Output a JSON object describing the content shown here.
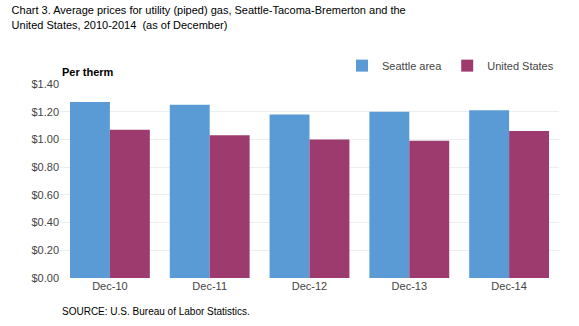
{
  "chart_data": {
    "type": "bar",
    "title": "Chart 3. Average prices for utility (piped) gas, Seattle-Tacoma-Bremerton and the\nUnited States, 2010-2014  (as of December)",
    "ylabel": "Per therm",
    "annotations": [
      "SOURCE: U.S. Bureau of Labor Statistics."
    ],
    "categories": [
      "Dec-10",
      "Dec-11",
      "Dec-12",
      "Dec-13",
      "Dec-14"
    ],
    "series": [
      {
        "name": "Seattle area",
        "color": "#5B9BD5",
        "values": [
          1.27,
          1.25,
          1.18,
          1.2,
          1.21
        ]
      },
      {
        "name": "United States",
        "color": "#9E3B6E",
        "values": [
          1.07,
          1.03,
          1.0,
          0.99,
          1.06
        ]
      }
    ],
    "ylim": [
      0,
      1.4
    ],
    "yticks": [
      {
        "value": 0.0,
        "label": "$0.00"
      },
      {
        "value": 0.2,
        "label": "$0.20"
      },
      {
        "value": 0.4,
        "label": "$0.40"
      },
      {
        "value": 0.6,
        "label": "$0.60"
      },
      {
        "value": 0.8,
        "label": "$0.80"
      },
      {
        "value": 1.0,
        "label": "$1.00"
      },
      {
        "value": 1.2,
        "label": "$1.20"
      },
      {
        "value": 1.4,
        "label": "$1.40"
      }
    ],
    "grid": true,
    "legend": "upper right"
  }
}
